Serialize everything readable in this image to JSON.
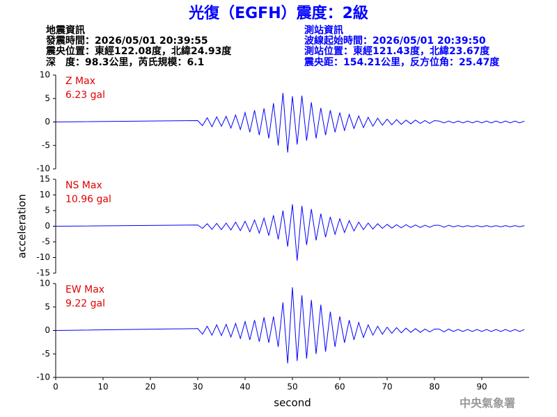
{
  "header": {
    "title": "光復（EGFH）震度：2級",
    "left": [
      "地震資訊",
      "發震時間：2026/05/01 20:39:55",
      "震央位置：東經122.08度，北緯24.93度",
      "深　度：98.3公里，芮氏規模：6.1"
    ],
    "right": [
      "測站資訊",
      "波線起始時間：2026/05/01 20:39:50",
      "測站位置：東經121.43度，北緯23.67度",
      "震央距：154.21公里，反方位角：25.47度"
    ]
  },
  "footer": "中央氣象署",
  "chart_data": [
    {
      "type": "line",
      "annotations": [
        "Z Max",
        "6.23 gal"
      ],
      "color": "#0000ff",
      "x": [
        0,
        30,
        31,
        32,
        33,
        34,
        35,
        36,
        37,
        38,
        39,
        40,
        41,
        42,
        43,
        44,
        45,
        46,
        47,
        48,
        49,
        50,
        51,
        52,
        53,
        54,
        55,
        56,
        57,
        58,
        59,
        60,
        61,
        62,
        63,
        64,
        65,
        66,
        67,
        68,
        69,
        70,
        71,
        72,
        73,
        74,
        75,
        76,
        77,
        78,
        79,
        80,
        81,
        82,
        83,
        84,
        85,
        86,
        87,
        88,
        89,
        90,
        91,
        92,
        93,
        94,
        95,
        96,
        97,
        98,
        99
      ],
      "values": [
        0,
        0.3,
        -0.8,
        0.9,
        -1.0,
        1.1,
        -0.9,
        1.2,
        -1.3,
        1.5,
        -1.6,
        2.0,
        -2.2,
        2.5,
        -2.8,
        2.9,
        -3.5,
        4.0,
        -5.0,
        6.2,
        -6.5,
        5.5,
        -4.8,
        5.6,
        -4.0,
        4.2,
        -3.5,
        3.0,
        -2.8,
        2.5,
        -2.2,
        2.0,
        -1.8,
        1.6,
        -1.4,
        1.3,
        -1.2,
        1.0,
        -0.9,
        0.8,
        -0.7,
        0.6,
        -0.6,
        0.5,
        -0.5,
        0.4,
        -0.4,
        0.4,
        -0.3,
        0.3,
        -0.3,
        0.3,
        0.2,
        -0.2,
        0.2,
        -0.2,
        0.2,
        -0.2,
        0.2,
        -0.2,
        0.2,
        -0.2,
        0.2,
        -0.2,
        0.2,
        -0.2,
        0.2,
        -0.2,
        0.2,
        -0.2,
        0.2
      ],
      "xlim": [
        0,
        100
      ],
      "ylim": [
        -10,
        10
      ],
      "yticks": [
        -10,
        -5,
        0,
        5,
        10
      ]
    },
    {
      "type": "line",
      "annotations": [
        "NS Max",
        "10.96 gal"
      ],
      "color": "#0000ff",
      "ylabel": "acceleration",
      "x": [
        0,
        30,
        31,
        32,
        33,
        34,
        35,
        36,
        37,
        38,
        39,
        40,
        41,
        42,
        43,
        44,
        45,
        46,
        47,
        48,
        49,
        50,
        51,
        52,
        53,
        54,
        55,
        56,
        57,
        58,
        59,
        60,
        61,
        62,
        63,
        64,
        65,
        66,
        67,
        68,
        69,
        70,
        71,
        72,
        73,
        74,
        75,
        76,
        77,
        78,
        79,
        80,
        81,
        82,
        83,
        84,
        85,
        86,
        87,
        88,
        89,
        90,
        91,
        92,
        93,
        94,
        95,
        96,
        97,
        98,
        99
      ],
      "values": [
        0,
        0.4,
        -0.7,
        0.8,
        -1.0,
        0.9,
        -1.1,
        1.0,
        -1.2,
        1.3,
        -1.4,
        1.6,
        -1.8,
        2.0,
        -2.2,
        2.6,
        -3.0,
        3.5,
        -4.2,
        5.0,
        -6.5,
        7.0,
        -11.0,
        6.5,
        -6.0,
        5.5,
        -4.5,
        4.0,
        -3.5,
        3.0,
        -2.6,
        2.4,
        -2.0,
        1.8,
        -1.5,
        1.3,
        -1.1,
        1.0,
        -0.9,
        0.8,
        -0.7,
        0.6,
        -0.6,
        0.5,
        -0.5,
        0.5,
        -0.4,
        0.4,
        -0.4,
        0.3,
        -0.3,
        0.3,
        0.3,
        -0.3,
        0.3,
        -0.2,
        0.2,
        -0.2,
        0.2,
        -0.2,
        0.2,
        -0.2,
        0.2,
        -0.2,
        0.2,
        -0.2,
        0.2,
        -0.2,
        0.2,
        -0.2,
        0.2
      ],
      "xlim": [
        0,
        100
      ],
      "ylim": [
        -15,
        15
      ],
      "yticks": [
        -15,
        -10,
        -5,
        0,
        5,
        10,
        15
      ]
    },
    {
      "type": "line",
      "annotations": [
        "EW Max",
        "9.22 gal"
      ],
      "color": "#0000ff",
      "xlabel": "second",
      "x": [
        0,
        30,
        31,
        32,
        33,
        34,
        35,
        36,
        37,
        38,
        39,
        40,
        41,
        42,
        43,
        44,
        45,
        46,
        47,
        48,
        49,
        50,
        51,
        52,
        53,
        54,
        55,
        56,
        57,
        58,
        59,
        60,
        61,
        62,
        63,
        64,
        65,
        66,
        67,
        68,
        69,
        70,
        71,
        72,
        73,
        74,
        75,
        76,
        77,
        78,
        79,
        80,
        81,
        82,
        83,
        84,
        85,
        86,
        87,
        88,
        89,
        90,
        91,
        92,
        93,
        94,
        95,
        96,
        97,
        98,
        99
      ],
      "values": [
        0,
        0.4,
        -0.8,
        0.9,
        -1.0,
        1.2,
        -1.1,
        1.3,
        -1.4,
        1.5,
        -1.7,
        1.9,
        -2.0,
        2.2,
        -2.4,
        2.8,
        -2.6,
        3.0,
        -3.5,
        6.0,
        -7.0,
        9.2,
        -6.5,
        7.5,
        -6.0,
        6.5,
        -5.0,
        5.5,
        -4.5,
        4.0,
        -3.5,
        3.0,
        -2.6,
        2.2,
        -2.0,
        1.7,
        -1.5,
        1.2,
        -1.0,
        0.9,
        -0.8,
        0.7,
        -0.6,
        0.6,
        -0.5,
        0.5,
        -0.4,
        0.4,
        -0.4,
        0.3,
        -0.3,
        0.3,
        0.3,
        -0.3,
        0.3,
        -0.2,
        0.2,
        -0.2,
        0.2,
        -0.2,
        0.2,
        -0.2,
        0.2,
        -0.2,
        0.2,
        -0.2,
        0.2,
        -0.2,
        0.2,
        -0.2,
        0.2
      ],
      "xlim": [
        0,
        100
      ],
      "ylim": [
        -10,
        10
      ],
      "yticks": [
        -10,
        -5,
        0,
        5,
        10
      ],
      "xticks": [
        0,
        10,
        20,
        30,
        40,
        50,
        60,
        70,
        80,
        90
      ]
    }
  ]
}
